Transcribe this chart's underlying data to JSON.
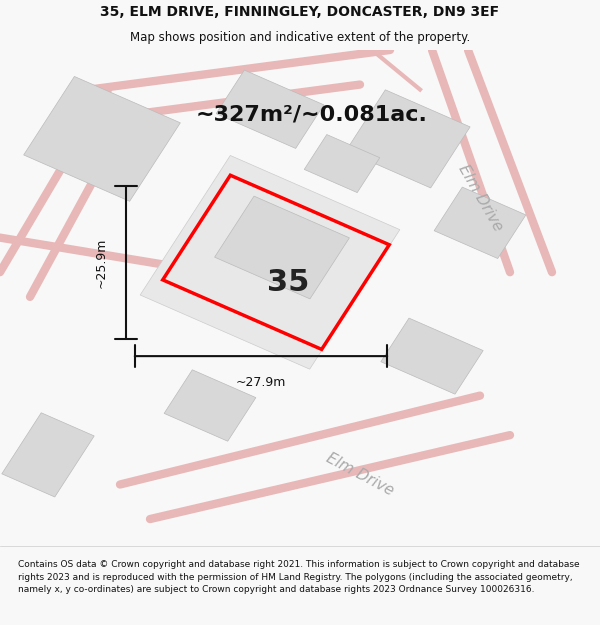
{
  "title": "35, ELM DRIVE, FINNINGLEY, DONCASTER, DN9 3EF",
  "subtitle": "Map shows position and indicative extent of the property.",
  "area_text": "~327m²/~0.081ac.",
  "number_label": "35",
  "dim_width": "~27.9m",
  "dim_height": "~25.9m",
  "road_label_1": "Elm Drive",
  "road_label_2": "Elm Drive",
  "copyright_text": "Contains OS data © Crown copyright and database right 2021. This information is subject to Crown copyright and database rights 2023 and is reproduced with the permission of HM Land Registry. The polygons (including the associated geometry, namely x, y co-ordinates) are subject to Crown copyright and database rights 2023 Ordnance Survey 100026316.",
  "bg_color": "#f8f8f8",
  "map_bg": "#ffffff",
  "building_color": "#d8d8d8",
  "road_line_color": "#e8b8b8",
  "boundary_color": "#ff0000",
  "dim_color": "#111111",
  "road_text_color": "#aaaaaa",
  "footer_bg": "#ffffff"
}
